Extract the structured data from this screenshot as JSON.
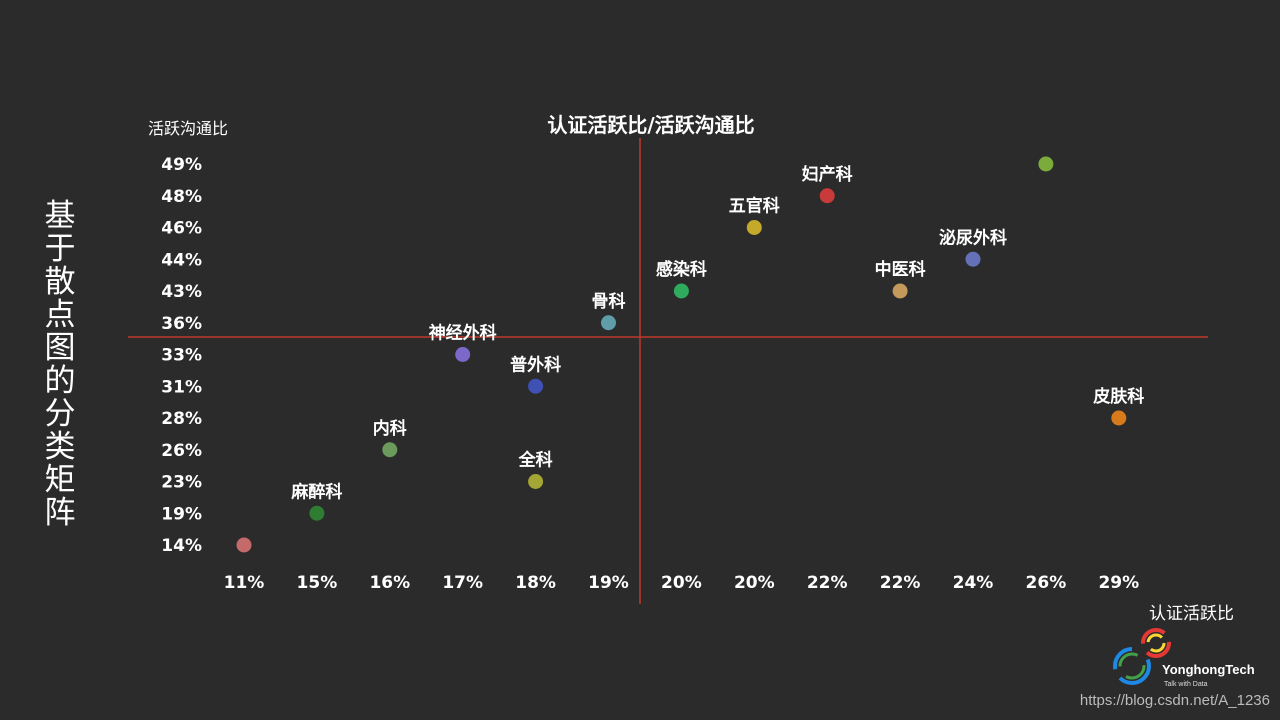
{
  "slide": {
    "vertical_title": "基于散点图的分类矩阵",
    "watermark": "https://blog.csdn.net/A_1236"
  },
  "brand": {
    "name": "YonghongTech",
    "tagline": "Talk with Data"
  },
  "colors": {
    "background": "#2b2b2b",
    "quadrant_line": "#c0392b",
    "text": "#ffffff"
  },
  "chart_data": {
    "type": "scatter",
    "title": "认证活跃比/活跃沟通比",
    "xlabel": "认证活跃比",
    "ylabel": "活跃沟通比",
    "x_ticks": [
      "11%",
      "15%",
      "16%",
      "17%",
      "18%",
      "19%",
      "20%",
      "20%",
      "22%",
      "22%",
      "24%",
      "26%",
      "29%"
    ],
    "y_ticks": [
      "49%",
      "48%",
      "46%",
      "44%",
      "43%",
      "36%",
      "33%",
      "31%",
      "28%",
      "26%",
      "23%",
      "19%",
      "14%"
    ],
    "points": [
      {
        "name": "麻醉科",
        "x": "15%",
        "y": "19%",
        "color": "#2e7d32"
      },
      {
        "name": "内科",
        "x": "16%",
        "y": "26%",
        "color": "#6b9a5c"
      },
      {
        "name": "神经外科",
        "x": "17%",
        "y": "33%",
        "color": "#7b68c8"
      },
      {
        "name": "普外科",
        "x": "18%",
        "y": "31%",
        "color": "#3f51b5"
      },
      {
        "name": "全科",
        "x": "18%",
        "y": "23%",
        "color": "#a3a635"
      },
      {
        "name": "骨科",
        "x": "19%",
        "y": "36%",
        "color": "#5f9ea8"
      },
      {
        "name": "感染科",
        "x": "20%",
        "y": "43%",
        "color": "#2eab5c"
      },
      {
        "name": "五官科",
        "x": "20%",
        "y": "46%",
        "color": "#c4a92a"
      },
      {
        "name": "妇产科",
        "x": "22%",
        "y": "48%",
        "color": "#c93b3b"
      },
      {
        "name": "中医科",
        "x": "22%",
        "y": "43%",
        "color": "#c49a5c"
      },
      {
        "name": "泌尿外科",
        "x": "24%",
        "y": "44%",
        "color": "#6470b8"
      },
      {
        "name": "皮肤科",
        "x": "29%",
        "y": "28%",
        "color": "#d97a1a"
      },
      {
        "name": "",
        "x": "26%",
        "y": "49%",
        "color": "#7aab3b"
      },
      {
        "name": "",
        "x": "11%",
        "y": "14%",
        "color": "#c46a6a"
      }
    ]
  }
}
